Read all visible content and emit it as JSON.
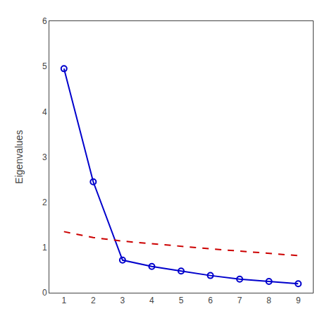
{
  "chart_data": {
    "type": "line",
    "x": [
      1,
      2,
      3,
      4,
      5,
      6,
      7,
      8,
      9
    ],
    "series": [
      {
        "color": "#0000cc",
        "marker": "circle",
        "line_style": "solid",
        "values": [
          4.95,
          2.45,
          0.72,
          0.58,
          0.48,
          0.38,
          0.3,
          0.25,
          0.2
        ]
      },
      {
        "color": "#cc0000",
        "line_style": "dashed",
        "values": [
          1.35,
          1.22,
          1.14,
          1.08,
          1.02,
          0.97,
          0.92,
          0.87,
          0.82
        ]
      }
    ],
    "ylabel": "Eigenvalues",
    "xlim": [
      0.5,
      9.5
    ],
    "xticks": [
      1,
      2,
      3,
      4,
      5,
      6,
      7,
      8,
      9
    ],
    "ylim": [
      0,
      6
    ],
    "yticks": [
      0,
      1,
      2,
      3,
      4,
      5,
      6
    ],
    "grid": false
  }
}
